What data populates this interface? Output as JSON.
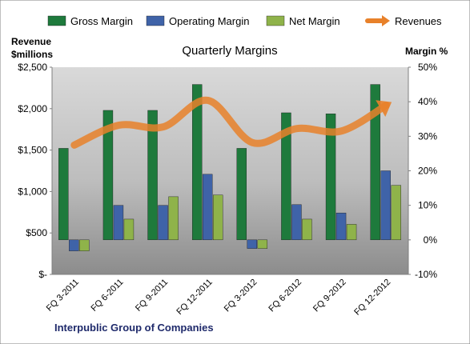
{
  "chart_data": {
    "type": "bar",
    "title": "Quarterly Margins",
    "company": "Interpublic Group of Companies",
    "left_axis_title": [
      "Revenue",
      "$millions"
    ],
    "right_axis_title": "Margin %",
    "categories": [
      "FQ 3-2011",
      "FQ 6-2011",
      "FQ 9-2011",
      "FQ 12-2011",
      "FQ 3-2012",
      "FQ 6-2012",
      "FQ 9-2012",
      "FQ 12-2012"
    ],
    "left_ticks": [
      "$-",
      "$500",
      "$1,000",
      "$1,500",
      "$2,000",
      "$2,500"
    ],
    "right_ticks": [
      "-10%",
      "0%",
      "10%",
      "20%",
      "30%",
      "40%",
      "50%"
    ],
    "ylim_left": [
      0,
      2500
    ],
    "ylim_right": [
      -10,
      50
    ],
    "legend_position": "top",
    "grid": false,
    "series": [
      {
        "name": "Gross Margin",
        "axis": "right",
        "kind": "bar",
        "color": "#1e7a3c",
        "values": [
          26.5,
          37.5,
          37.5,
          45.0,
          26.5,
          36.8,
          36.5,
          45.0
        ]
      },
      {
        "name": "Operating Margin",
        "axis": "right",
        "kind": "bar",
        "color": "#3f63a8",
        "values": [
          -3.2,
          10.0,
          10.0,
          19.0,
          -2.5,
          10.2,
          7.8,
          20.0
        ]
      },
      {
        "name": "Net Margin",
        "axis": "right",
        "kind": "bar",
        "color": "#8fb34a",
        "values": [
          -3.2,
          6.0,
          12.5,
          13.0,
          -2.5,
          6.0,
          4.5,
          15.8
        ]
      },
      {
        "name": "Revenues",
        "axis": "left",
        "kind": "line",
        "color": "#e8812a",
        "values": [
          1560,
          1800,
          1780,
          2100,
          1590,
          1760,
          1730,
          2040
        ]
      }
    ]
  }
}
